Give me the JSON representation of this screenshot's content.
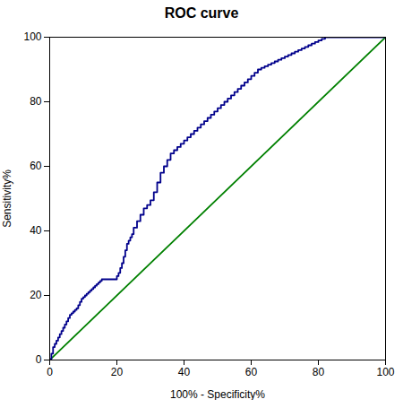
{
  "chart_data": {
    "type": "line",
    "title": "ROC curve",
    "xlabel": "100% - Specificity%",
    "ylabel": "Sensitivity%",
    "xlim": [
      0,
      100
    ],
    "ylim": [
      0,
      100
    ],
    "xticks": [
      0,
      20,
      40,
      60,
      80,
      100
    ],
    "yticks": [
      0,
      20,
      40,
      60,
      80,
      100
    ],
    "grid": false,
    "series": [
      {
        "color": "#008000",
        "x": [
          0,
          100
        ],
        "values": [
          0,
          100
        ]
      },
      {
        "color": "#00008B",
        "x": [
          0.0,
          0.5,
          0.5,
          1.0,
          1.0,
          1.5,
          1.5,
          2.0,
          2.0,
          2.5,
          2.5,
          3.0,
          3.0,
          3.5,
          3.5,
          4.0,
          4.0,
          4.5,
          4.5,
          5.0,
          5.0,
          5.5,
          5.5,
          6.0,
          6.0,
          6.5,
          6.5,
          7.0,
          7.0,
          7.5,
          7.5,
          8.0,
          8.0,
          8.5,
          8.5,
          9.0,
          9.0,
          9.5,
          9.5,
          10.0,
          10.0,
          10.5,
          10.5,
          11.0,
          11.0,
          11.5,
          11.5,
          12.0,
          12.0,
          12.5,
          12.5,
          13.0,
          13.0,
          13.5,
          13.5,
          14.0,
          14.0,
          14.5,
          14.5,
          15.0,
          15.0,
          15.5,
          15.5,
          16.0,
          16.0,
          16.5,
          16.5,
          17.0,
          17.0,
          17.5,
          17.5,
          18.0,
          18.0,
          18.5,
          18.5,
          19.0,
          19.0,
          19.5,
          19.5,
          20.0,
          20.0,
          20.5,
          20.5,
          21.0,
          21.0,
          21.5,
          21.5,
          22.0,
          22.0,
          22.5,
          22.5,
          23.0,
          23.0,
          23.5,
          23.5,
          24.0,
          24.0,
          24.5,
          24.5,
          25.0,
          25.0,
          26.0,
          26.0,
          27.0,
          27.0,
          28.0,
          28.0,
          29.0,
          29.0,
          30.0,
          30.0,
          31.0,
          31.0,
          32.0,
          32.0,
          33.0,
          33.0,
          34.0,
          34.0,
          35.0,
          35.0,
          36.0,
          36.0,
          37.0,
          37.0,
          38.0,
          38.0,
          39.0,
          39.0,
          40.0,
          40.0,
          41.0,
          41.0,
          42.0,
          42.0,
          43.0,
          43.0,
          44.0,
          44.0,
          45.0,
          45.0,
          46.0,
          46.0,
          47.0,
          47.0,
          48.0,
          48.0,
          49.0,
          49.0,
          50.0,
          50.0,
          51.0,
          51.0,
          52.0,
          52.0,
          53.0,
          53.0,
          54.0,
          54.0,
          55.0,
          55.0,
          56.0,
          56.0,
          57.0,
          57.0,
          58.0,
          58.0,
          59.0,
          59.0,
          60.0,
          60.0,
          61.0,
          61.0,
          62.0,
          62.0,
          63.0,
          63.0,
          64.0,
          64.0,
          65.0,
          65.0,
          66.0,
          66.0,
          67.0,
          67.0,
          68.0,
          68.0,
          69.0,
          69.0,
          70.0,
          70.0,
          71.0,
          71.0,
          72.0,
          72.0,
          73.0,
          73.0,
          74.0,
          74.0,
          75.0,
          75.0,
          76.0,
          76.0,
          77.0,
          77.0,
          78.0,
          78.0,
          79.0,
          79.0,
          80.0,
          80.0,
          81.0,
          81.0,
          82.0,
          82.0,
          83.0,
          83.0,
          84.0,
          84.0,
          85.0,
          85.0,
          86.0,
          86.0,
          87.0,
          87.0,
          88.0,
          88.0,
          89.0,
          89.0,
          90.0,
          90.0,
          91.0,
          91.0,
          92.0,
          92.0,
          93.0,
          93.0,
          94.0,
          94.0,
          95.0,
          95.0,
          96.0,
          96.0,
          97.0,
          97.0,
          98.0,
          98.0,
          99.0,
          99.0,
          100.0
        ],
        "values": [
          0.0,
          0.0,
          2.0,
          2.0,
          4.0,
          4.0,
          5.0,
          5.0,
          6.0,
          6.0,
          7.0,
          7.0,
          8.0,
          8.0,
          9.0,
          9.0,
          10.0,
          10.0,
          11.0,
          11.0,
          12.0,
          12.0,
          13.0,
          13.0,
          14.0,
          14.0,
          14.5,
          14.5,
          15.0,
          15.0,
          15.5,
          15.5,
          16.0,
          16.0,
          17.0,
          17.0,
          18.0,
          18.0,
          19.0,
          19.0,
          19.5,
          19.5,
          20.0,
          20.0,
          20.5,
          20.5,
          21.0,
          21.0,
          21.5,
          21.5,
          22.0,
          22.0,
          22.5,
          22.5,
          23.0,
          23.0,
          23.5,
          23.5,
          24.0,
          24.0,
          24.5,
          24.5,
          25.0,
          25.0,
          25.0,
          25.0,
          25.0,
          25.0,
          25.0,
          25.0,
          25.0,
          25.0,
          25.0,
          25.0,
          25.0,
          25.0,
          25.0,
          25.0,
          25.0,
          25.0,
          26.0,
          26.0,
          27.0,
          27.0,
          28.5,
          28.5,
          30.0,
          30.0,
          32.0,
          32.0,
          34.0,
          34.0,
          36.0,
          36.0,
          37.0,
          37.0,
          38.0,
          38.0,
          39.0,
          39.0,
          41.0,
          41.0,
          43.0,
          43.0,
          45.0,
          45.0,
          47.0,
          47.0,
          48.0,
          48.0,
          49.5,
          49.5,
          52.0,
          52.0,
          55.0,
          55.0,
          58.0,
          58.0,
          60.0,
          60.0,
          62.0,
          62.0,
          64.0,
          64.0,
          65.0,
          65.0,
          66.0,
          66.0,
          67.0,
          67.0,
          68.0,
          68.0,
          69.0,
          69.0,
          70.0,
          70.0,
          71.0,
          71.0,
          72.0,
          72.0,
          73.0,
          73.0,
          74.0,
          74.0,
          75.0,
          75.0,
          76.0,
          76.0,
          77.0,
          77.0,
          78.0,
          78.0,
          79.0,
          79.0,
          80.0,
          80.0,
          81.0,
          81.0,
          82.0,
          82.0,
          83.0,
          83.0,
          84.0,
          84.0,
          85.0,
          85.0,
          86.0,
          86.0,
          87.0,
          87.0,
          88.0,
          88.0,
          89.0,
          89.0,
          90.0,
          90.0,
          90.5,
          90.5,
          91.0,
          91.0,
          91.5,
          91.5,
          92.0,
          92.0,
          92.5,
          92.5,
          93.0,
          93.0,
          93.5,
          93.5,
          94.0,
          94.0,
          94.5,
          94.5,
          95.0,
          95.0,
          95.5,
          95.5,
          96.0,
          96.0,
          96.5,
          96.5,
          97.0,
          97.0,
          97.5,
          97.5,
          98.0,
          98.0,
          98.5,
          98.5,
          99.0,
          99.0,
          99.5,
          99.5,
          100.0,
          100.0,
          100.0,
          100.0,
          100.0,
          100.0,
          100.0,
          100.0,
          100.0,
          100.0,
          100.0,
          100.0,
          100.0,
          100.0,
          100.0,
          100.0,
          100.0,
          100.0,
          100.0,
          100.0,
          100.0,
          100.0,
          100.0,
          100.0,
          100.0,
          100.0,
          100.0,
          100.0,
          100.0,
          100.0,
          100.0,
          100.0,
          100.0,
          100.0,
          100.0,
          100.0
        ]
      }
    ]
  }
}
